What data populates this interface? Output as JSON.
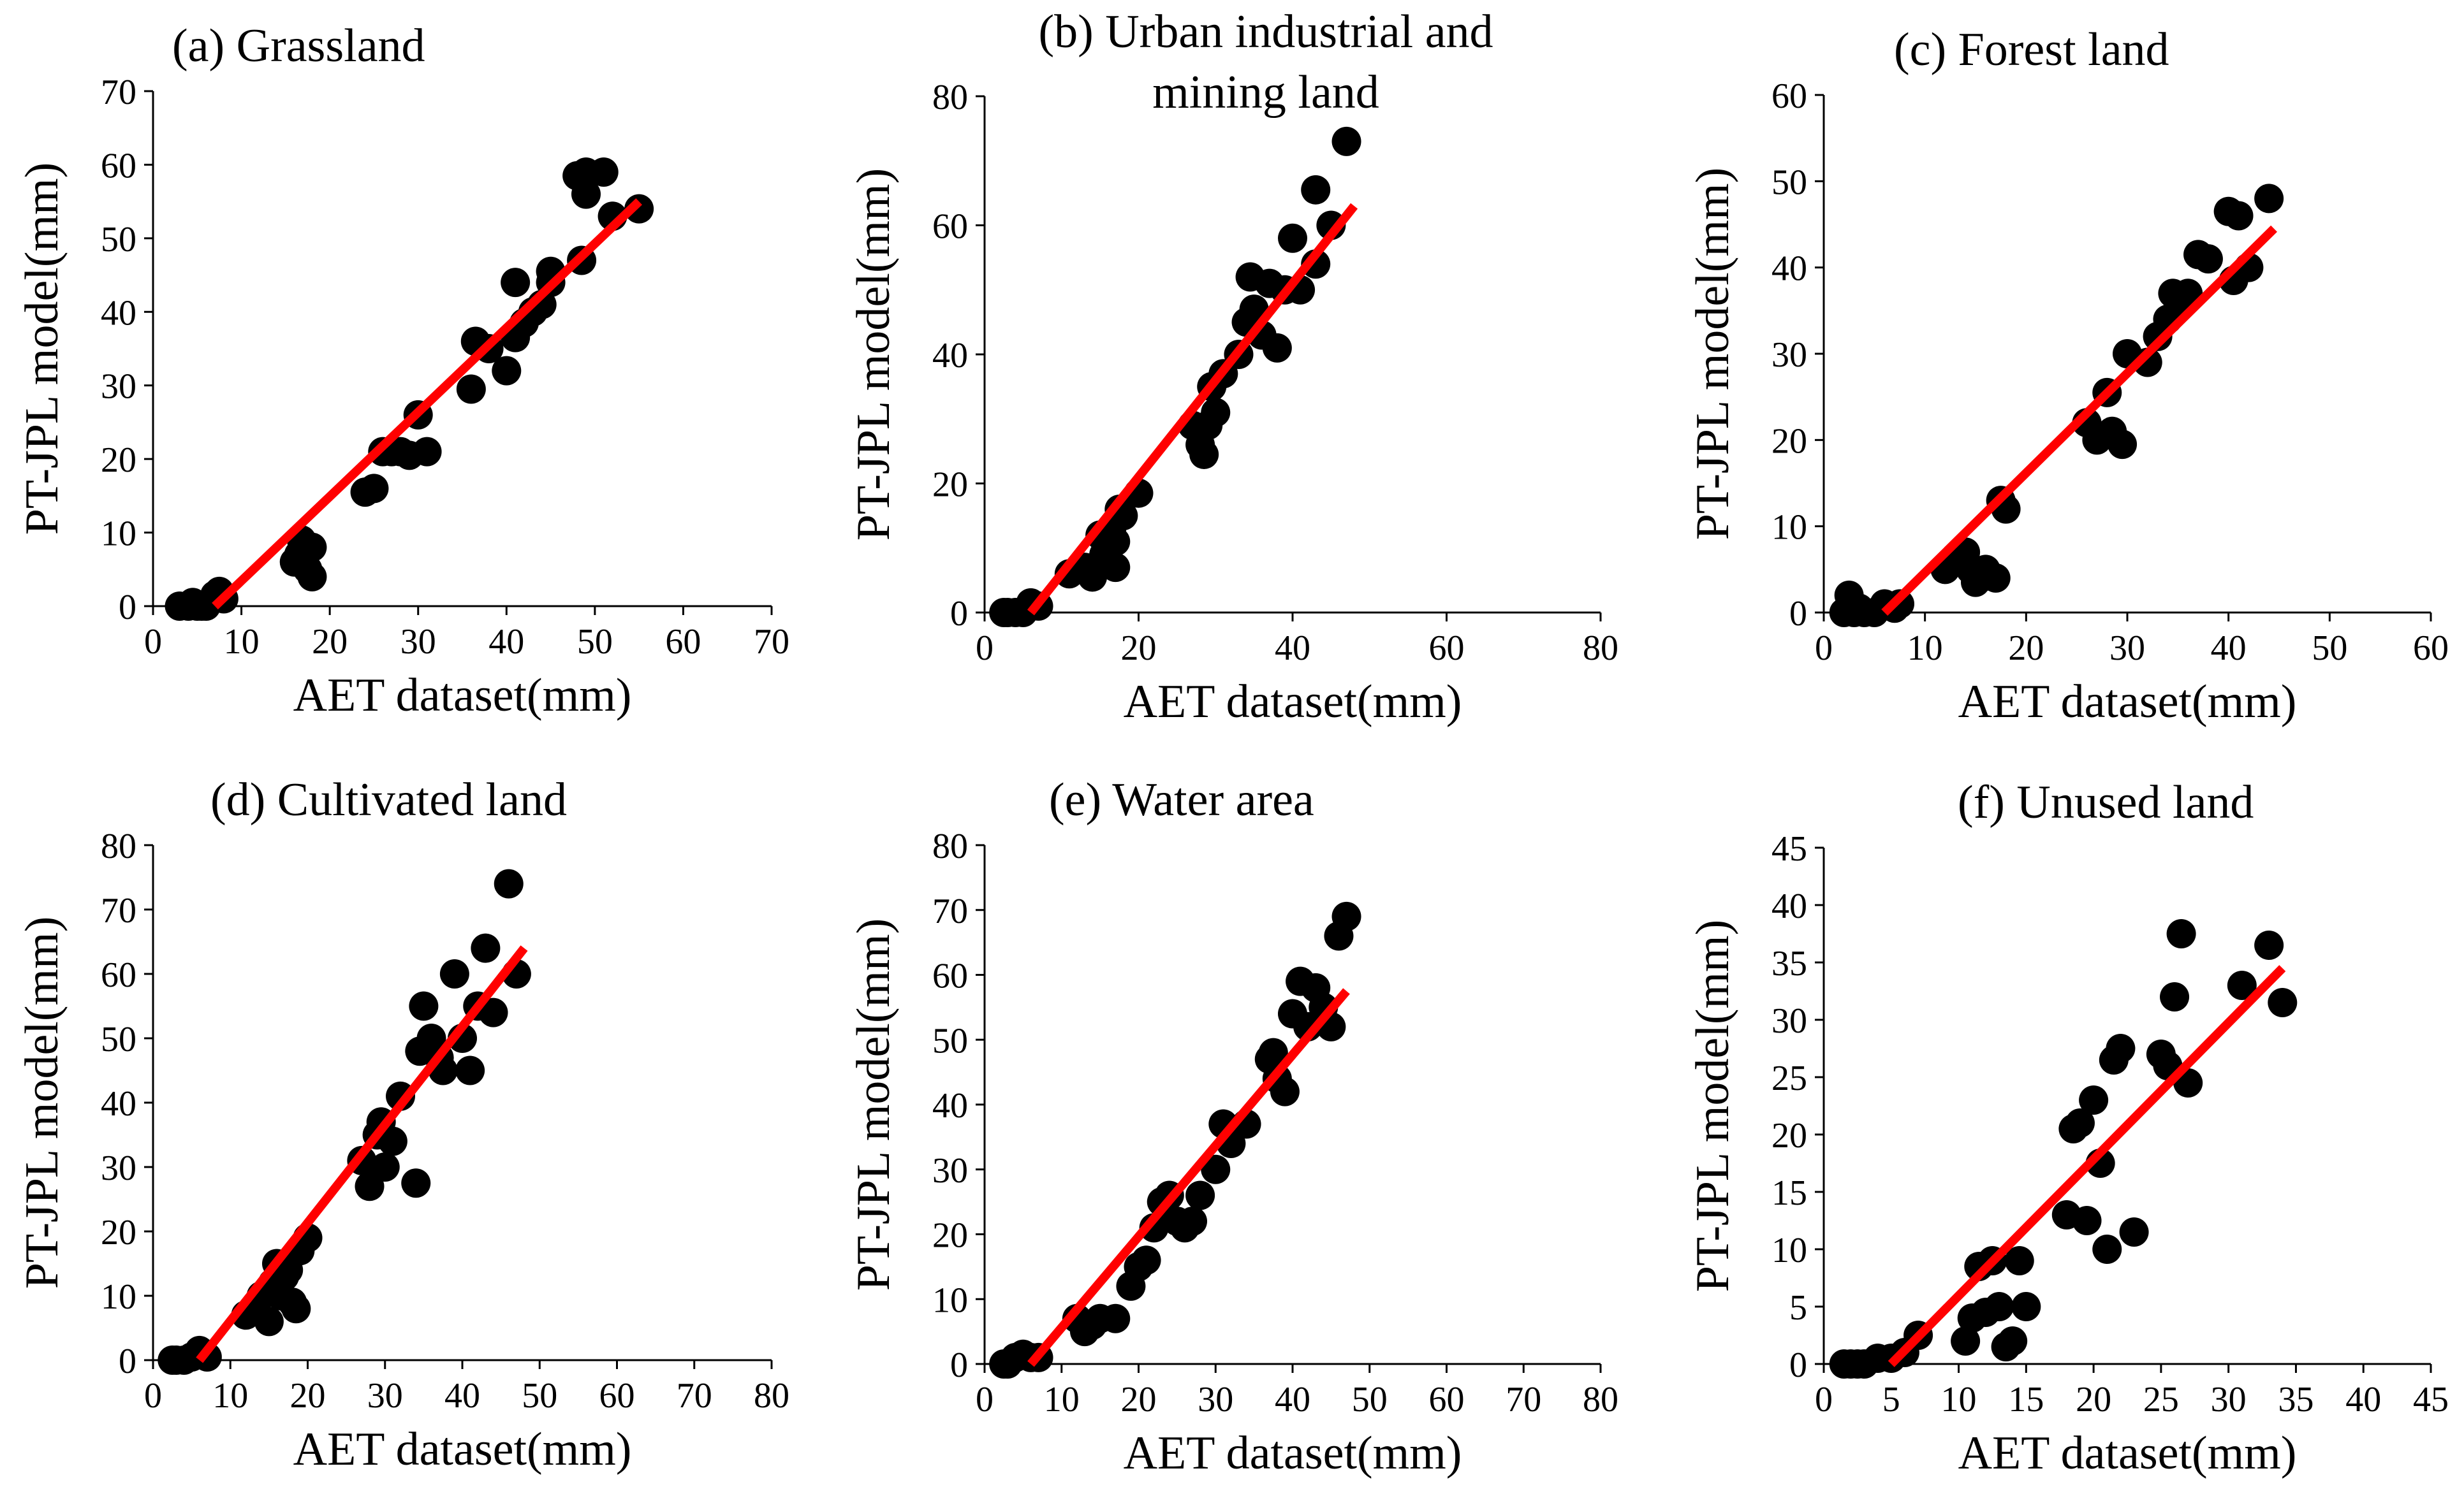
{
  "colors": {
    "point": "#000000",
    "fit": "#ff0000",
    "axis": "#000000"
  },
  "chart_data": [
    {
      "type": "scatter",
      "title_lines": [
        "(a) Grassland"
      ],
      "xlabel": "AET dataset(mm)",
      "ylabel": "PT-JPL model(mm)",
      "xlim": [
        0,
        70
      ],
      "ylim": [
        0,
        70
      ],
      "xstep": 10,
      "ystep": 10,
      "xticks": [
        "0",
        "10",
        "20",
        "30",
        "40",
        "50",
        "60",
        "70"
      ],
      "yticks": [
        "0",
        "10",
        "20",
        "30",
        "40",
        "50",
        "60",
        "70"
      ],
      "x": [
        3,
        4,
        4.5,
        5,
        5.5,
        6,
        7,
        7.5,
        8,
        16,
        16.5,
        17,
        17.5,
        18,
        18,
        16.8,
        24,
        25,
        26,
        27,
        28,
        29,
        30,
        31,
        36,
        36.5,
        38,
        40,
        41,
        41,
        42,
        43,
        44,
        45,
        45,
        48,
        48.5,
        49,
        49,
        51,
        52,
        55
      ],
      "y": [
        0,
        0,
        0.5,
        0,
        0,
        0,
        1.5,
        2,
        1,
        6,
        7,
        8,
        5,
        4,
        8,
        9,
        15.5,
        16,
        21,
        21,
        21,
        20.5,
        26,
        21,
        29.5,
        36,
        35,
        32,
        44,
        36.5,
        38.5,
        40,
        41,
        44,
        45.5,
        58.5,
        47,
        56,
        59,
        59,
        53,
        54
      ],
      "fit": [
        [
          7,
          0
        ],
        [
          55,
          55
        ]
      ]
    },
    {
      "type": "scatter",
      "title_lines": [
        "(b) Urban industrial and",
        "mining land"
      ],
      "xlabel": "AET dataset(mm)",
      "ylabel": "PT-JPL model(mm)",
      "xlim": [
        0,
        80
      ],
      "ylim": [
        0,
        80
      ],
      "xstep": 20,
      "ystep": 20,
      "xticks": [
        "0",
        "20",
        "40",
        "60",
        "80"
      ],
      "yticks": [
        "0",
        "20",
        "40",
        "60",
        "80"
      ],
      "x": [
        2.5,
        3,
        4,
        5,
        6,
        7,
        11,
        13,
        14,
        15,
        15.5,
        16,
        16.5,
        17,
        17,
        17.5,
        18,
        20,
        27,
        28,
        28.5,
        29,
        29.5,
        30,
        31,
        33,
        34,
        34.5,
        35,
        36,
        37,
        38,
        39,
        40,
        41,
        43,
        43,
        45,
        47
      ],
      "y": [
        0,
        0,
        0,
        0,
        1.5,
        1,
        6,
        7,
        5.5,
        12,
        9,
        8,
        13,
        11,
        7,
        16,
        15,
        18.5,
        29,
        26,
        24.5,
        29,
        35,
        31,
        37,
        40,
        45,
        52,
        47,
        43,
        51,
        41,
        50,
        58,
        50,
        54,
        65.5,
        60,
        73
      ],
      "fit": [
        [
          6,
          0
        ],
        [
          48,
          63
        ]
      ]
    },
    {
      "type": "scatter",
      "title_lines": [
        "(c) Forest land"
      ],
      "xlabel": "AET dataset(mm)",
      "ylabel": "PT-JPL model(mm)",
      "xlim": [
        0,
        60
      ],
      "ylim": [
        0,
        60
      ],
      "xstep": 10,
      "ystep": 10,
      "xticks": [
        "0",
        "10",
        "20",
        "30",
        "40",
        "50",
        "60"
      ],
      "yticks": [
        "0",
        "10",
        "20",
        "30",
        "40",
        "50",
        "60"
      ],
      "x": [
        2,
        2.5,
        3,
        3.5,
        4,
        5,
        6,
        7,
        7.5,
        12,
        13,
        14,
        14.5,
        15,
        15.5,
        16,
        17,
        17.5,
        18,
        26,
        27,
        28,
        28.5,
        29.5,
        30,
        32,
        33,
        34,
        34.5,
        35,
        36,
        37,
        38,
        40,
        40.5,
        41,
        42,
        44
      ],
      "y": [
        0,
        2,
        0,
        0.5,
        0,
        0,
        1,
        0.5,
        1,
        5,
        6,
        7,
        5,
        3.5,
        4,
        5,
        4,
        13,
        12,
        22,
        20,
        25.5,
        21,
        19.5,
        30,
        29,
        32,
        34,
        37,
        36,
        37,
        41.5,
        41,
        46.5,
        38.5,
        46,
        40,
        48
      ],
      "fit": [
        [
          6,
          0
        ],
        [
          44.5,
          44.5
        ]
      ]
    },
    {
      "type": "scatter",
      "title_lines": [
        "(d) Cultivated land"
      ],
      "xlabel": "AET dataset(mm)",
      "ylabel": "PT-JPL model(mm)",
      "xlim": [
        0,
        80
      ],
      "ylim": [
        0,
        80
      ],
      "xstep": 10,
      "ystep": 10,
      "xticks": [
        "0",
        "10",
        "20",
        "30",
        "40",
        "50",
        "60",
        "70",
        "80"
      ],
      "yticks": [
        "0",
        "10",
        "20",
        "30",
        "40",
        "50",
        "60",
        "70",
        "80"
      ],
      "x": [
        2.5,
        3,
        4,
        5,
        6,
        7,
        12,
        14,
        15,
        15.5,
        16,
        16.5,
        17,
        17.5,
        18,
        18.5,
        19,
        20,
        27,
        28,
        29,
        29.5,
        30,
        31,
        32,
        34,
        34.5,
        35,
        36,
        37,
        37.5,
        39,
        40,
        41,
        42,
        43,
        44,
        46,
        47
      ],
      "y": [
        0,
        0,
        0,
        0.5,
        1.5,
        0.5,
        7,
        10,
        6,
        12,
        15,
        10,
        13,
        14,
        9,
        8,
        17,
        19,
        31,
        27,
        35,
        37,
        30,
        34,
        41,
        27.5,
        48,
        55,
        50,
        47,
        45,
        60,
        50,
        45,
        55,
        64,
        54,
        74,
        60
      ],
      "fit": [
        [
          6,
          0
        ],
        [
          48,
          64
        ]
      ]
    },
    {
      "type": "scatter",
      "title_lines": [
        "(e) Water area"
      ],
      "xlabel": "AET dataset(mm)",
      "ylabel": "PT-JPL model(mm)",
      "xlim": [
        0,
        80
      ],
      "ylim": [
        0,
        80
      ],
      "xstep": 10,
      "ystep": 10,
      "xticks": [
        "0",
        "10",
        "20",
        "30",
        "40",
        "50",
        "60",
        "70",
        "80"
      ],
      "yticks": [
        "0",
        "10",
        "20",
        "30",
        "40",
        "50",
        "60",
        "70",
        "80"
      ],
      "x": [
        2.5,
        3,
        4,
        5,
        6,
        7,
        12,
        13,
        14,
        15,
        17,
        19,
        20,
        21,
        22,
        23,
        24,
        25,
        26,
        27,
        28,
        30,
        31,
        32,
        34,
        37,
        37.5,
        38,
        39,
        40,
        41,
        42,
        43,
        44,
        45,
        46,
        47
      ],
      "y": [
        0,
        0,
        1,
        1.5,
        1,
        1,
        7,
        5,
        6,
        7,
        7,
        12,
        15,
        16,
        21,
        25,
        26,
        22,
        21,
        22,
        26,
        30,
        37,
        34,
        37,
        47,
        48,
        44,
        42,
        54,
        59,
        52,
        58,
        55,
        52,
        66,
        69
      ],
      "fit": [
        [
          6,
          0
        ],
        [
          47,
          57.5
        ]
      ]
    },
    {
      "type": "scatter",
      "title_lines": [
        "(f) Unused land"
      ],
      "xlabel": "AET dataset(mm)",
      "ylabel": "PT-JPL model(mm)",
      "xlim": [
        0,
        45
      ],
      "ylim": [
        0,
        45
      ],
      "xstep": 5,
      "ystep": 5,
      "xticks": [
        "0",
        "5",
        "10",
        "15",
        "20",
        "25",
        "30",
        "35",
        "40",
        "45"
      ],
      "yticks": [
        "0",
        "5",
        "10",
        "15",
        "20",
        "25",
        "30",
        "35",
        "40",
        "45"
      ],
      "x": [
        1.5,
        2,
        2.5,
        3,
        4,
        5,
        6,
        7,
        10.5,
        11,
        11.5,
        12,
        12.5,
        13,
        13.5,
        14,
        14.5,
        15,
        18,
        18.5,
        19,
        19.5,
        20,
        20.5,
        21,
        21.5,
        22,
        23,
        25,
        25.5,
        26,
        26.5,
        27,
        31,
        33,
        34
      ],
      "y": [
        0,
        0,
        0,
        0,
        0.5,
        0.5,
        1,
        2.5,
        2,
        4,
        8.5,
        4.5,
        9,
        5,
        1.5,
        2,
        9,
        5,
        13,
        20.5,
        21,
        12.5,
        23,
        17.5,
        10,
        26.5,
        27.5,
        11.5,
        27,
        26,
        32,
        37.5,
        24.5,
        33,
        36.5,
        31.5
      ],
      "fit": [
        [
          5,
          0
        ],
        [
          34,
          34.5
        ]
      ]
    }
  ]
}
